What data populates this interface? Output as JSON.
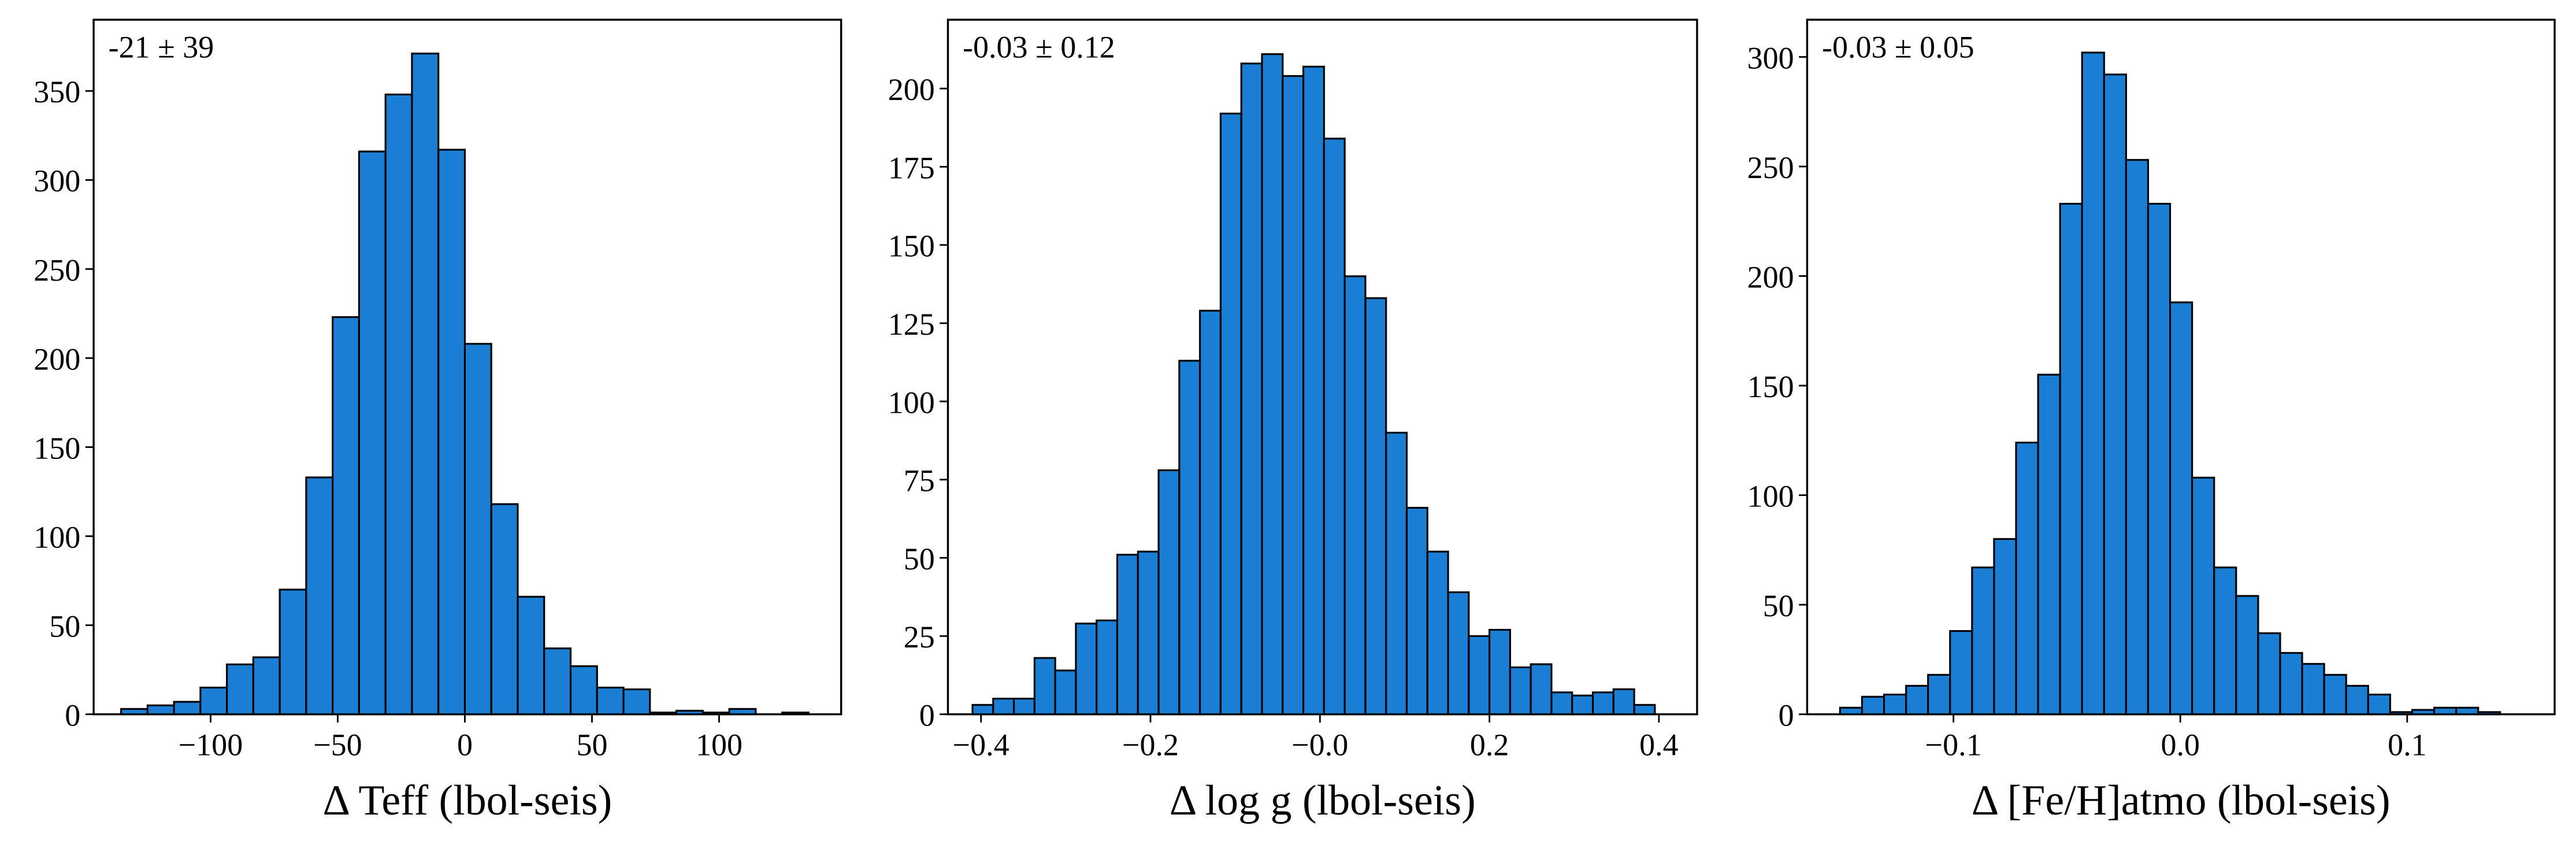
{
  "chart_data": [
    {
      "type": "histogram",
      "color": "#1a7fd4",
      "edgecolor": "#000000",
      "annotation": "-21 ± 39",
      "xlabel": "Δ Teff (lbol-seis)",
      "bins": [
        -135.2,
        -124.8,
        -114.4,
        -104,
        -93.6,
        -83.2,
        -72.8,
        -62.4,
        -52,
        -41.6,
        -31.2,
        -20.8,
        -10.4,
        0,
        10.4,
        20.8,
        31.2,
        41.6,
        52,
        62.4,
        72.8,
        83.2,
        93.6,
        104,
        114.4,
        124.8,
        135.2
      ],
      "values": [
        3,
        5,
        7,
        15,
        28,
        32,
        70,
        133,
        223,
        316,
        348,
        371,
        317,
        208,
        118,
        66,
        37,
        27,
        15,
        14,
        1,
        2,
        1,
        3,
        0,
        1
      ],
      "xlim": [
        -146,
        148
      ],
      "ylim": [
        0,
        390
      ],
      "xticks": [
        {
          "value": -100,
          "label": "−100"
        },
        {
          "value": -50,
          "label": "−50"
        },
        0,
        50,
        100
      ],
      "yticks": [
        0,
        50,
        100,
        150,
        200,
        250,
        300,
        350
      ]
    },
    {
      "type": "histogram",
      "color": "#1a7fd4",
      "edgecolor": "#000000",
      "annotation": "-0.03 ± 0.12",
      "xlabel": "Δ log g (lbol-seis)",
      "bins": [
        -0.41,
        -0.3856,
        -0.3612,
        -0.3368,
        -0.3124,
        -0.288,
        -0.2636,
        -0.2392,
        -0.2148,
        -0.1904,
        -0.166,
        -0.1416,
        -0.1172,
        -0.0928,
        -0.0684,
        -0.044,
        -0.0196,
        0.0048,
        0.0292,
        0.0536,
        0.078,
        0.1024,
        0.1268,
        0.1512,
        0.1756,
        0.2,
        0.2244,
        0.2488,
        0.2732,
        0.2976,
        0.322,
        0.3464,
        0.3708,
        0.3952
      ],
      "values": [
        3,
        5,
        5,
        18,
        14,
        29,
        30,
        51,
        52,
        78,
        113,
        129,
        192,
        208,
        211,
        204,
        207,
        184,
        140,
        133,
        90,
        66,
        52,
        39,
        25,
        27,
        15,
        16,
        7,
        6,
        7,
        8,
        3
      ],
      "xlim": [
        -0.439,
        0.445
      ],
      "ylim": [
        0,
        222
      ],
      "xticks": [
        {
          "value": -0.4,
          "label": "−0.4"
        },
        {
          "value": -0.2,
          "label": "−0.2"
        },
        {
          "value": 0,
          "label": "−0.0"
        },
        0.2,
        0.4
      ],
      "yticks": [
        0,
        25,
        50,
        75,
        100,
        125,
        150,
        175,
        200
      ]
    },
    {
      "type": "histogram",
      "color": "#1a7fd4",
      "edgecolor": "#000000",
      "annotation": "-0.03 ± 0.05",
      "xlabel": "Δ [Fe/H]atmo (lbol-seis)",
      "bins": [
        -0.15,
        -0.1403,
        -0.1306,
        -0.1209,
        -0.1112,
        -0.1015,
        -0.0918,
        -0.0821,
        -0.0724,
        -0.0627,
        -0.053,
        -0.0433,
        -0.0336,
        -0.0239,
        -0.0142,
        -0.0045,
        0.0052,
        0.0149,
        0.0246,
        0.0343,
        0.044,
        0.0537,
        0.0634,
        0.0731,
        0.0828,
        0.0925,
        0.1022,
        0.1119,
        0.1216,
        0.1313,
        0.141
      ],
      "values": [
        3,
        8,
        9,
        13,
        18,
        38,
        67,
        80,
        124,
        155,
        233,
        302,
        292,
        253,
        233,
        188,
        108,
        67,
        54,
        37,
        28,
        23,
        18,
        13,
        9,
        1,
        2,
        3,
        3,
        1
      ],
      "xlim": [
        -0.1645,
        0.165
      ],
      "ylim": [
        0,
        317
      ],
      "xticks": [
        {
          "value": -0.1,
          "label": "−0.1"
        },
        {
          "value": 0,
          "label": "0.0"
        },
        0.1
      ],
      "yticks": [
        0,
        50,
        100,
        150,
        200,
        250,
        300
      ]
    }
  ]
}
